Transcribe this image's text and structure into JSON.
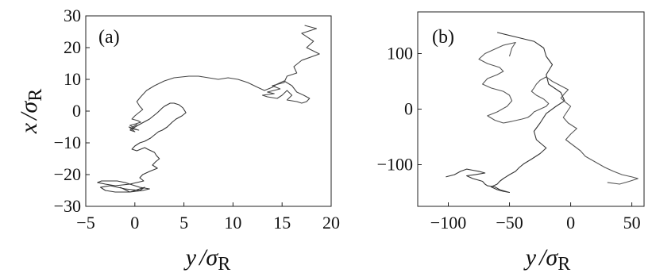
{
  "chart_data": [
    {
      "type": "line",
      "panel_label": "(a)",
      "xlabel": {
        "var": "y",
        "sigma": "σ",
        "sub": "R"
      },
      "ylabel": {
        "var": "x",
        "sigma": "σ",
        "sub": "R"
      },
      "xlim": [
        -5,
        20
      ],
      "ylim": [
        -30,
        30
      ],
      "xticks": [
        -5,
        0,
        5,
        10,
        15,
        20
      ],
      "yticks": [
        -30,
        -20,
        -10,
        0,
        10,
        20,
        30
      ],
      "grid": false,
      "series": [
        {
          "color": "#444444",
          "x": [
            17.3,
            18.5,
            17.0,
            18.2,
            17.5,
            18.8,
            17.0,
            16.2,
            16.5,
            15.5,
            15.2,
            14.0,
            14.8,
            13.5,
            14.2,
            13.0,
            13.5,
            14.5,
            15.0,
            15.5,
            16.0,
            15.5,
            16.5,
            17.0,
            17.5,
            17.8,
            17.2,
            16.5,
            16.0,
            15.2,
            14.5,
            14.0,
            13.2,
            12.5,
            11.5,
            10.5,
            9.5,
            8.5,
            7.5,
            6.5,
            5.5,
            4.0,
            3.0,
            2.0,
            1.2,
            0.6,
            0.2,
            0.5,
            0.8,
            0.4,
            0.0,
            -0.3,
            0.3,
            0.6,
            0.1,
            -0.5,
            -0.2,
            0.2,
            -0.4,
            0.4,
            -0.6,
            0.0,
            -0.5
          ],
          "y": [
            27.0,
            26.0,
            24.5,
            22.0,
            20.0,
            18.0,
            16.0,
            14.0,
            12.0,
            11.0,
            9.0,
            8.0,
            7.0,
            6.0,
            5.5,
            5.0,
            4.5,
            4.0,
            5.0,
            6.5,
            5.0,
            3.5,
            3.0,
            2.5,
            3.0,
            4.0,
            5.0,
            6.0,
            8.0,
            9.5,
            8.5,
            7.5,
            6.5,
            7.5,
            9.0,
            10.0,
            10.5,
            10.0,
            10.5,
            11.0,
            11.0,
            10.5,
            9.5,
            8.0,
            6.5,
            4.5,
            3.0,
            1.5,
            0.5,
            -0.5,
            -1.5,
            -2.5,
            -3.0,
            -3.5,
            -4.0,
            -4.5,
            -5.0,
            -4.2,
            -5.5,
            -6.0,
            -5.0,
            -6.5,
            -6.0
          ]
        },
        {
          "color": "#333333",
          "x": [
            -0.5,
            0.3,
            1.5,
            2.3,
            2.8,
            3.0,
            3.3,
            3.6,
            4.0,
            4.5,
            4.9,
            5.2,
            4.8,
            4.2,
            3.8,
            3.3,
            2.8,
            2.4,
            2.0,
            1.6,
            1.0,
            0.5,
            0.0,
            -0.3,
            0.2,
            0.6,
            1.0,
            1.3,
            2.0,
            2.2,
            2.5,
            2.1,
            1.8,
            2.3,
            1.5,
            0.8,
            0.5,
            0.9,
            0.2,
            -0.5,
            -1.0,
            -1.8,
            -2.5,
            -3.4,
            -3.8,
            -3.0,
            -2.0,
            -0.5,
            0.5,
            1.5,
            0.8,
            -0.5,
            -2.0,
            -3.0,
            -3.5,
            -2.5,
            -1.0,
            0.5,
            1.0,
            -0.5,
            -1.5
          ],
          "y": [
            -6.0,
            -4.5,
            -2.5,
            -0.5,
            1.0,
            1.5,
            2.0,
            2.5,
            2.5,
            2.0,
            1.0,
            -0.5,
            -1.5,
            -2.5,
            -3.5,
            -5.0,
            -6.0,
            -6.5,
            -7.5,
            -8.5,
            -9.5,
            -10.0,
            -11.0,
            -12.0,
            -12.5,
            -12.0,
            -11.5,
            -12.0,
            -13.0,
            -14.0,
            -15.0,
            -16.0,
            -17.0,
            -18.0,
            -19.0,
            -20.0,
            -21.0,
            -22.0,
            -22.5,
            -23.0,
            -22.5,
            -22.0,
            -22.0,
            -22.0,
            -22.5,
            -23.0,
            -23.5,
            -23.0,
            -24.0,
            -24.5,
            -25.0,
            -25.5,
            -25.5,
            -25.0,
            -24.0,
            -23.5,
            -24.5,
            -25.0,
            -24.0,
            -25.5,
            -24.0
          ]
        }
      ]
    },
    {
      "type": "line",
      "panel_label": "(b)",
      "xlabel": {
        "var": "y",
        "sigma": "σ",
        "sub": "R"
      },
      "ylabel": null,
      "xlim": [
        -125,
        60
      ],
      "ylim": [
        -175,
        175
      ],
      "xticks": [
        -100,
        -50,
        0,
        50
      ],
      "yticks": [
        100,
        0,
        -100
      ],
      "grid": false,
      "series": [
        {
          "color": "#333333",
          "x": [
            -60,
            -45,
            -30,
            -22,
            -20,
            -15,
            -20,
            -18,
            -8,
            -5,
            -12,
            -20,
            -25,
            -30,
            -28,
            -20,
            -25,
            -32,
            -38,
            -42,
            -45,
            -50,
            -55,
            -58,
            -60,
            -65,
            -60,
            -55,
            -50,
            -58,
            -62,
            -68,
            -70,
            -72,
            -75,
            -80,
            -85,
            -78,
            -70,
            -75,
            -80,
            -85,
            -90,
            -95,
            -102
          ],
          "y": [
            138,
            130,
            122,
            110,
            95,
            80,
            62,
            45,
            30,
            15,
            5,
            -8,
            -25,
            -40,
            -55,
            -70,
            -80,
            -90,
            -98,
            -105,
            -112,
            -118,
            -125,
            -130,
            -135,
            -140,
            -145,
            -148,
            -150,
            -145,
            -140,
            -138,
            -135,
            -130,
            -128,
            -125,
            -120,
            -118,
            -115,
            -112,
            -110,
            -108,
            -112,
            -118,
            -122
          ]
        },
        {
          "color": "#555555",
          "x": [
            -50,
            -48,
            -45,
            -55,
            -62,
            -70,
            -75,
            -68,
            -58,
            -55,
            -60,
            -68,
            -72,
            -65,
            -55,
            -50,
            -48,
            -52,
            -60,
            -68,
            -62,
            -55,
            -48,
            -40,
            -35,
            -32,
            -30,
            -25,
            -20,
            -18,
            -22,
            -28,
            -32,
            -30,
            -28,
            -25,
            -20,
            -15,
            -8,
            -2,
            -5,
            -8,
            -4,
            0,
            -3,
            -6,
            -2,
            5,
            0,
            -4,
            2,
            8,
            12,
            20,
            28,
            35,
            42,
            50,
            55,
            48,
            40,
            30
          ],
          "y": [
            95,
            110,
            120,
            115,
            108,
            100,
            90,
            82,
            75,
            68,
            62,
            55,
            45,
            38,
            32,
            25,
            15,
            5,
            -5,
            -12,
            -20,
            -25,
            -22,
            -18,
            -15,
            -10,
            -5,
            0,
            5,
            10,
            18,
            25,
            32,
            38,
            45,
            52,
            58,
            50,
            42,
            35,
            28,
            20,
            12,
            5,
            -5,
            -15,
            -25,
            -35,
            -45,
            -55,
            -65,
            -75,
            -85,
            -95,
            -105,
            -112,
            -118,
            -122,
            -125,
            -130,
            -135,
            -132
          ]
        }
      ]
    }
  ]
}
